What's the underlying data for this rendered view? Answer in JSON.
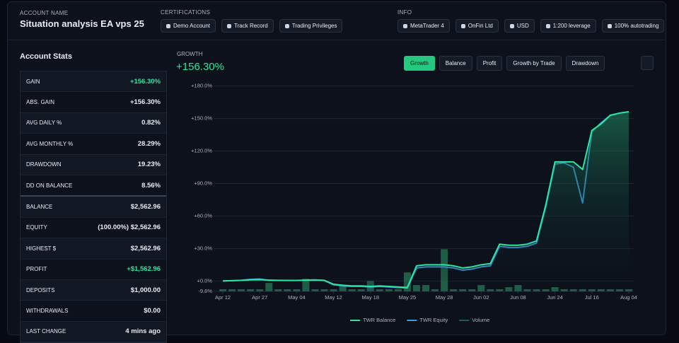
{
  "header": {
    "account_label": "ACCOUNT NAME",
    "account_name": "Situation analysis EA vps 25",
    "certifications_label": "CERTIFICATIONS",
    "certifications": [
      "Demo Account",
      "Track Record",
      "Trading Privileges"
    ],
    "info_label": "INFO",
    "info": [
      "MetaTrader 4",
      "OnFin Ltd",
      "USD",
      "1:200 leverage",
      "100% autotrading"
    ]
  },
  "stats": {
    "title": "Account Stats",
    "rows": [
      [
        "GAIN",
        "+156.30%"
      ],
      [
        "ABS. GAIN",
        "+156.30%"
      ],
      [
        "AVG DAILY %",
        "0.82%"
      ],
      [
        "AVG MONTHLY %",
        "28.29%"
      ],
      [
        "DRAWDOWN",
        "19.23%"
      ],
      [
        "DD ON BALANCE",
        "8.56%"
      ],
      [
        "BALANCE",
        "$2,562.96"
      ],
      [
        "EQUITY",
        "(100.00%) $2,562.96"
      ],
      [
        "HIGHEST $",
        "$2,562.96"
      ],
      [
        "PROFIT",
        "+$1,562.96"
      ],
      [
        "DEPOSITS",
        "$1,000.00"
      ],
      [
        "WITHDRAWALS",
        "$0.00"
      ],
      [
        "LAST CHANGE",
        "4 mins ago"
      ]
    ]
  },
  "growth": {
    "label": "GROWTH",
    "value": "+156.30%",
    "tabs": [
      "Growth",
      "Balance",
      "Profit",
      "Growth by Trade",
      "Drawdown"
    ]
  },
  "chart_data": {
    "type": "line",
    "x": [
      0,
      1,
      2,
      3,
      4,
      5,
      6,
      7,
      8,
      9,
      10,
      11,
      12,
      13,
      14,
      15,
      16,
      17,
      18,
      19,
      20,
      21,
      22,
      23,
      24,
      25,
      26,
      27,
      28,
      29,
      30,
      31,
      32,
      33,
      34,
      35,
      36,
      37,
      38,
      39,
      40,
      41,
      42,
      43,
      44
    ],
    "xlim": [
      -1,
      45
    ],
    "xticks": [
      {
        "value": 0,
        "label": "Apr 12"
      },
      {
        "value": 4,
        "label": "Apr 27"
      },
      {
        "value": 8,
        "label": "May 04"
      },
      {
        "value": 12,
        "label": "May 12"
      },
      {
        "value": 16,
        "label": "May 18"
      },
      {
        "value": 20,
        "label": "May 25"
      },
      {
        "value": 24,
        "label": "May 28"
      },
      {
        "value": 28,
        "label": "Jun 02"
      },
      {
        "value": 32,
        "label": "Jun 08"
      },
      {
        "value": 36,
        "label": "Jun 24"
      },
      {
        "value": 40,
        "label": "Jul 16"
      },
      {
        "value": 44,
        "label": "Aug 04"
      }
    ],
    "ylim": [
      -9.6,
      185
    ],
    "yticks": [
      {
        "value": -9.6,
        "label": "-9.6%"
      },
      {
        "value": 0,
        "label": "+0.0%"
      },
      {
        "value": 30,
        "label": "+30.0%"
      },
      {
        "value": 60,
        "label": "+60.0%"
      },
      {
        "value": 90,
        "label": "+90.0%"
      },
      {
        "value": 120,
        "label": "+120.0%"
      },
      {
        "value": 150,
        "label": "+150.0%"
      },
      {
        "value": 180,
        "label": "+180.0%"
      }
    ],
    "y2lim": [
      0,
      10
    ],
    "grid": true,
    "series": [
      {
        "name": "TWR Balance",
        "color": "#2ee59d",
        "values": [
          0,
          0.3,
          0.6,
          1,
          1.2,
          0.8,
          0.6,
          0.5,
          0.5,
          0.8,
          1,
          0.6,
          -3,
          -4,
          -4.5,
          -4.5,
          -5,
          -4.5,
          -5,
          -5.5,
          -6,
          14,
          15,
          15,
          15,
          14,
          12,
          13,
          15,
          16,
          34,
          33,
          33,
          34,
          37,
          70,
          110,
          110,
          110,
          103,
          139,
          145,
          153,
          155,
          156.3
        ]
      },
      {
        "name": "TWR Equity",
        "color": "#3b9ae1",
        "values": [
          0,
          0.3,
          0.6,
          1.5,
          1.8,
          0.6,
          0.5,
          0.5,
          0.5,
          0.6,
          0.8,
          0.4,
          -3.5,
          -4.5,
          -5,
          -5,
          -5.5,
          -5,
          -5.5,
          -6,
          -6.5,
          12,
          13,
          13,
          13,
          12,
          10,
          11,
          13,
          14,
          32,
          31,
          31,
          32,
          35,
          68,
          108,
          109,
          105,
          72,
          138,
          146,
          153,
          155,
          156.3
        ]
      },
      {
        "name": "Volume",
        "color": "#1f5e46",
        "axis": "y2",
        "values": [
          0.1,
          0.1,
          0.1,
          0.1,
          0.1,
          0.4,
          0.1,
          0.1,
          0.1,
          0.6,
          0.1,
          0.1,
          0.1,
          0.3,
          0.1,
          0.1,
          0.5,
          0.1,
          0.1,
          0.1,
          0.9,
          0.3,
          0.3,
          0.1,
          2.0,
          0.1,
          0.1,
          0.1,
          0.3,
          0.1,
          0.1,
          0.2,
          0.3,
          0.1,
          0.1,
          0.1,
          0.2,
          0.1,
          0.1,
          0.1,
          0.1,
          0.1,
          0.1,
          0.1,
          0.1
        ]
      }
    ]
  }
}
